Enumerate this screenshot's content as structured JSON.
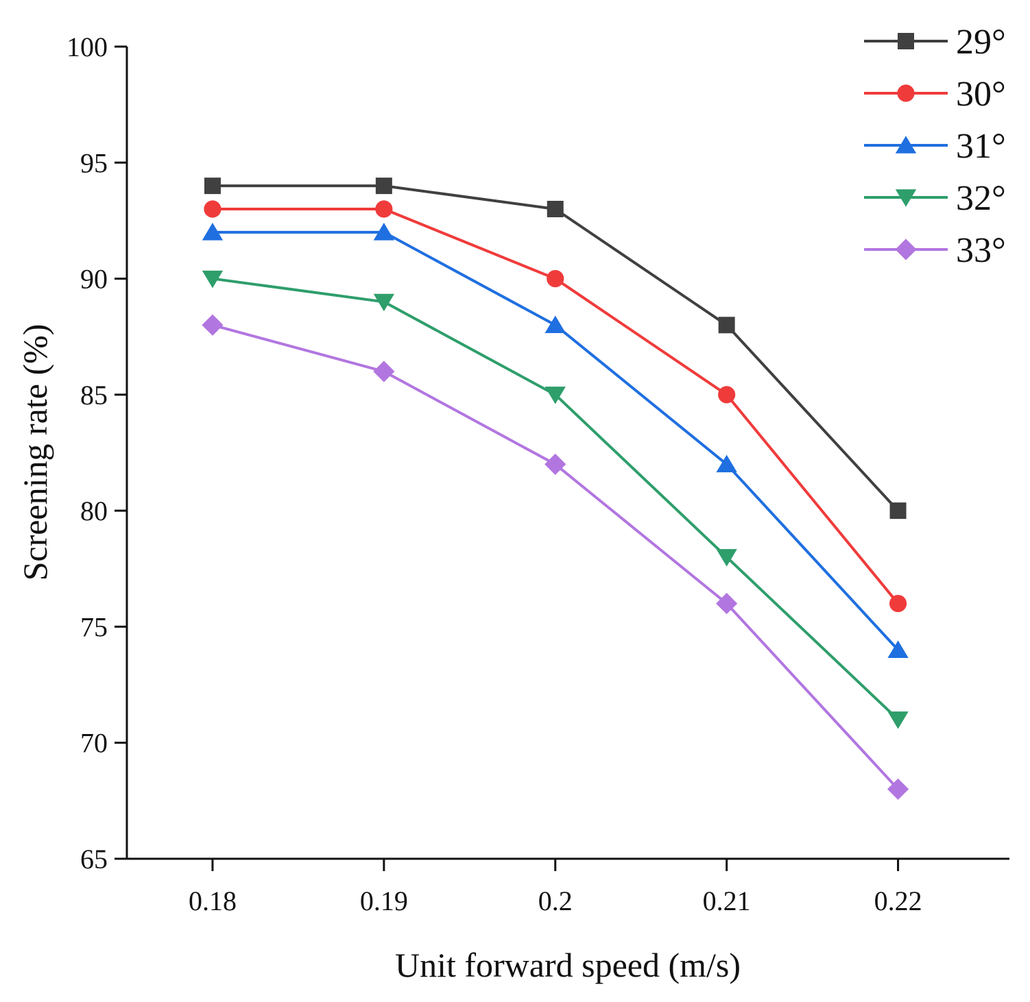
{
  "chart_data": {
    "type": "line",
    "title": "",
    "xlabel": "Unit forward speed (m/s)",
    "ylabel": "Screening rate (%)",
    "x": [
      0.18,
      0.19,
      0.2,
      0.21,
      0.22
    ],
    "x_tick_labels": [
      "0.18",
      "0.19",
      "0.2",
      "0.21",
      "0.22"
    ],
    "xlim": [
      0.175,
      0.2265
    ],
    "ylim": [
      65,
      100
    ],
    "y_ticks": [
      65,
      70,
      75,
      80,
      85,
      90,
      95,
      100
    ],
    "y_tick_labels": [
      "65",
      "70",
      "75",
      "80",
      "85",
      "90",
      "95",
      "100"
    ],
    "grid": false,
    "legend_position": "top-right",
    "series": [
      {
        "name": "29°",
        "values": [
          94,
          94,
          93,
          88,
          80
        ],
        "color": "#404040",
        "marker": "square"
      },
      {
        "name": "30°",
        "values": [
          93,
          93,
          90,
          85,
          76
        ],
        "color": "#f03b3b",
        "marker": "circle"
      },
      {
        "name": "31°",
        "values": [
          92,
          92,
          88,
          82,
          74
        ],
        "color": "#1f6fe0",
        "marker": "triangle-up"
      },
      {
        "name": "32°",
        "values": [
          90,
          89,
          85,
          78,
          71
        ],
        "color": "#2e9e6b",
        "marker": "triangle-down"
      },
      {
        "name": "33°",
        "values": [
          88,
          86,
          82,
          76,
          68
        ],
        "color": "#b276e0",
        "marker": "diamond"
      }
    ]
  }
}
